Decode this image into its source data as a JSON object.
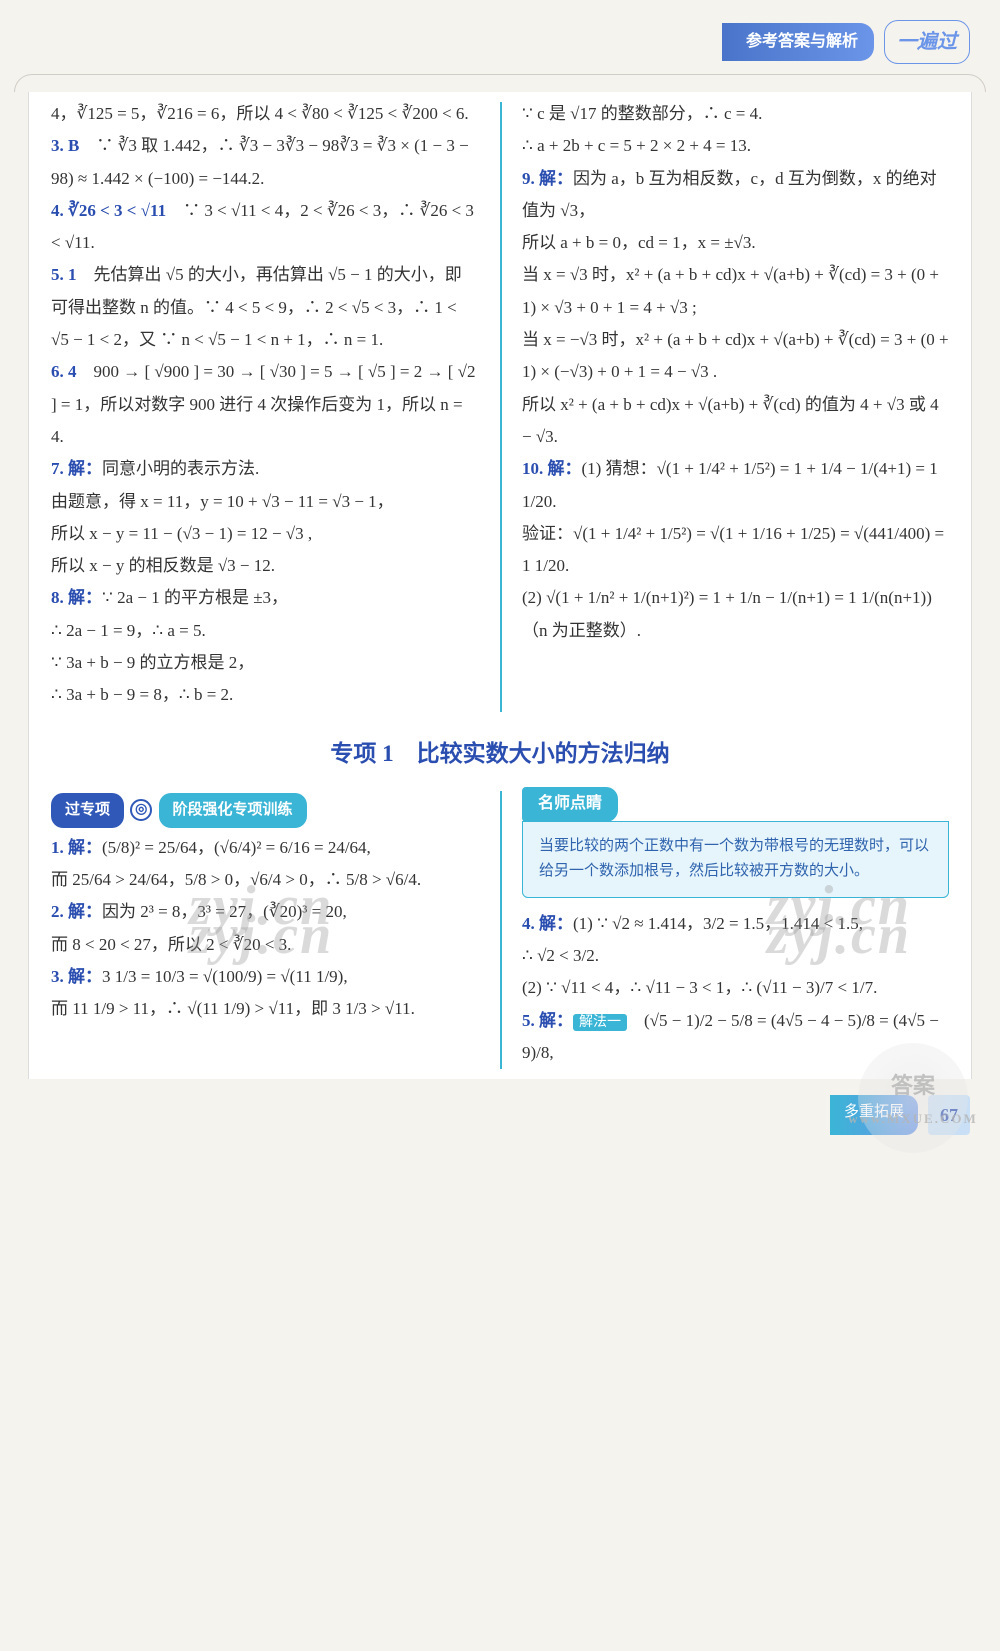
{
  "colors": {
    "accent_blue": "#2a4db0",
    "teal": "#3ab5d6",
    "pill_blue": "#2f58b8",
    "header_grad_a": "#4a74c9",
    "header_grad_b": "#6b95e8",
    "tip_bg": "#e6f5fb",
    "tip_text": "#2f63ae",
    "page_bg": "#f5f3ee"
  },
  "header": {
    "title": "参考答案与解析",
    "logo": "一遍过"
  },
  "footer": {
    "label": "多重拓展",
    "page": "67"
  },
  "watermark": {
    "stamp_main": "答案",
    "stamp_sub": "www.MXUE.COM",
    "cn": "zyj.cn"
  },
  "section1_heading": "专项 1　比较实数大小的方法归纳",
  "pills": {
    "p1": "过专项",
    "icon": "◎",
    "p2": "阶段强化专项训练"
  },
  "tip": {
    "head": "名师点睛",
    "body": "当要比较的两个正数中有一个数为带根号的无理数时，可以给另一个数添加根号，然后比较被开方数的大小。"
  },
  "method_tag": "解法一",
  "left1": [
    "4，∛125 = 5，∛216 = 6，所以 4 < ∛80 < ∛125 < ∛200 < 6.",
    "<b>3. B</b>　∵ ∛3 取 1.442，∴ ∛3 − 3∛3 − 98∛3 = ∛3 × (1 − 3 − 98) ≈ 1.442 × (−100) = −144.2.",
    "<b>4. ∛26 < 3 < √11</b>　∵ 3 < √11 < 4，2 < ∛26 < 3，∴ ∛26 < 3 < √11.",
    "<b>5. 1</b>　先估算出 √5 的大小，再估算出 √5 − 1 的大小，即可得出整数 n 的值。∵ 4 < 5 < 9，∴ 2 < √5 < 3，∴ 1 < √5 − 1 < 2，又 ∵ n < √5 − 1 < n + 1，∴ n = 1.",
    "<b>6. 4</b>　900 → [ √900 ] = 30 → [ √30 ] = 5 → [ √5 ] = 2 → [ √2 ] = 1，所以对数字 900 进行 4 次操作后变为 1，所以 n = 4.",
    "<b>7. 解：</b>同意小明的表示方法.",
    "由题意，得 x = 11，y = 10 + √3 − 11 = √3 − 1，",
    "所以 x − y = 11 − (√3 − 1) = 12 − √3 ,",
    "所以 x − y 的相反数是 √3 − 12.",
    "<b>8. 解：</b>∵ 2a − 1 的平方根是 ±3，",
    "∴ 2a − 1 = 9，∴ a = 5.",
    "∵ 3a + b − 9 的立方根是 2，",
    "∴ 3a + b − 9 = 8，∴ b = 2."
  ],
  "right1": [
    "∵ c 是 √17 的整数部分，∴ c = 4.",
    "∴ a + 2b + c = 5 + 2 × 2 + 4 = 13.",
    "<b>9. 解：</b>因为 a，b 互为相反数，c，d 互为倒数，x 的绝对值为 √3，",
    "所以 a + b = 0，cd = 1，x = ±√3.",
    "当 x = √3 时，x² + (a + b + cd)x + √(a+b) + ∛(cd) = 3 + (0 + 1) × √3 + 0 + 1 = 4 + √3 ;",
    "当 x = −√3 时，x² + (a + b + cd)x + √(a+b) + ∛(cd) = 3 + (0 + 1) × (−√3) + 0 + 1 = 4 − √3 .",
    "所以 x² + (a + b + cd)x + √(a+b) + ∛(cd) 的值为 4 + √3 或 4 − √3.",
    "<b>10. 解：</b>(1) 猜想：√(1 + 1/4² + 1/5²) = 1 + 1/4 − 1/(4+1) = 1 1/20.",
    "验证：√(1 + 1/4² + 1/5²) = √(1 + 1/16 + 1/25) = √(441/400) = 1 1/20.",
    "(2) √(1 + 1/n² + 1/(n+1)²) = 1 + 1/n − 1/(n+1) = 1 1/(n(n+1))（n 为正整数）."
  ],
  "left2": [
    "<b>1. 解：</b>(5/8)² = 25/64，(√6/4)² = 6/16 = 24/64,",
    "而 25/64 > 24/64，5/8 > 0，√6/4 > 0，∴ 5/8 > √6/4.",
    "<b>2. 解：</b>因为 2³ = 8，3³ = 27，(∛20)³ = 20,",
    "而 8 < 20 < 27，所以 2 < ∛20 < 3.",
    "<b>3. 解：</b>3 1/3 = 10/3 = √(100/9) = √(11 1/9),",
    "而 11 1/9 > 11，∴ √(11 1/9) > √11，即 3 1/3 > √11."
  ],
  "right2_q4": [
    "<b>4. 解：</b>(1) ∵ √2 ≈ 1.414，3/2 = 1.5，1.414 < 1.5,",
    "∴ √2 < 3/2.",
    "(2) ∵ √11 < 4，∴ √11 − 3 < 1，∴ (√11 − 3)/7 < 1/7."
  ],
  "right2_q5": "<b>5. 解：</b>",
  "right2_q5_tail": "　(√5 − 1)/2 − 5/8 = (4√5 − 4 − 5)/8 = (4√5 − 9)/8,"
}
